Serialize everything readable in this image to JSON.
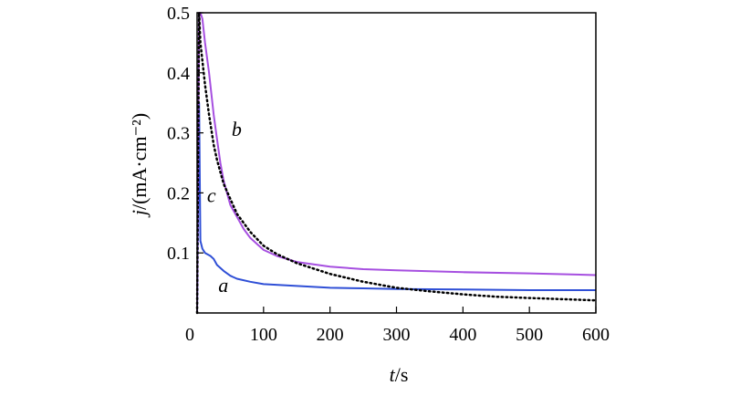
{
  "chart_data": {
    "type": "line",
    "title": "",
    "xlabel": {
      "italic": "t",
      "rest": "/s"
    },
    "ylabel": {
      "italic": "j",
      "rest": "/(mA·cm⁻²)"
    },
    "xlim": [
      0,
      600
    ],
    "ylim": [
      0,
      0.5
    ],
    "xticks": [
      0,
      100,
      200,
      300,
      400,
      500,
      600
    ],
    "yticks": [
      0.1,
      0.2,
      0.3,
      0.4,
      0.5
    ],
    "grid": false,
    "series": [
      {
        "name": "a",
        "color": "#2f4fd6",
        "style": "solid",
        "label_at": [
          32,
          0.035
        ],
        "points": [
          [
            0,
            0.0
          ],
          [
            3,
            0.35
          ],
          [
            5,
            0.12
          ],
          [
            8,
            0.107
          ],
          [
            12,
            0.1
          ],
          [
            20,
            0.095
          ],
          [
            25,
            0.09
          ],
          [
            30,
            0.08
          ],
          [
            40,
            0.07
          ],
          [
            50,
            0.062
          ],
          [
            60,
            0.057
          ],
          [
            80,
            0.052
          ],
          [
            100,
            0.048
          ],
          [
            150,
            0.045
          ],
          [
            200,
            0.042
          ],
          [
            250,
            0.041
          ],
          [
            300,
            0.04
          ],
          [
            400,
            0.039
          ],
          [
            500,
            0.038
          ],
          [
            600,
            0.038
          ]
        ]
      },
      {
        "name": "b",
        "color": "#a64fe0",
        "style": "solid",
        "label_at": [
          52,
          0.295
        ],
        "points": [
          [
            0,
            0.0
          ],
          [
            3,
            0.5
          ],
          [
            5,
            0.5
          ],
          [
            8,
            0.49
          ],
          [
            12,
            0.45
          ],
          [
            18,
            0.4
          ],
          [
            25,
            0.33
          ],
          [
            30,
            0.29
          ],
          [
            35,
            0.25
          ],
          [
            40,
            0.22
          ],
          [
            50,
            0.18
          ],
          [
            60,
            0.16
          ],
          [
            70,
            0.14
          ],
          [
            80,
            0.125
          ],
          [
            100,
            0.105
          ],
          [
            120,
            0.095
          ],
          [
            150,
            0.085
          ],
          [
            200,
            0.077
          ],
          [
            250,
            0.073
          ],
          [
            300,
            0.071
          ],
          [
            400,
            0.068
          ],
          [
            500,
            0.066
          ],
          [
            600,
            0.063
          ]
        ]
      },
      {
        "name": "c",
        "color": "#000000",
        "style": "dotted",
        "label_at": [
          15,
          0.185
        ],
        "points": [
          [
            0,
            0.0
          ],
          [
            3,
            0.5
          ],
          [
            5,
            0.45
          ],
          [
            8,
            0.42
          ],
          [
            12,
            0.38
          ],
          [
            18,
            0.33
          ],
          [
            25,
            0.28
          ],
          [
            30,
            0.255
          ],
          [
            40,
            0.215
          ],
          [
            50,
            0.19
          ],
          [
            60,
            0.165
          ],
          [
            80,
            0.135
          ],
          [
            100,
            0.112
          ],
          [
            120,
            0.098
          ],
          [
            150,
            0.083
          ],
          [
            200,
            0.065
          ],
          [
            250,
            0.052
          ],
          [
            300,
            0.042
          ],
          [
            350,
            0.036
          ],
          [
            400,
            0.031
          ],
          [
            450,
            0.027
          ],
          [
            500,
            0.025
          ],
          [
            550,
            0.023
          ],
          [
            600,
            0.021
          ]
        ]
      }
    ]
  }
}
